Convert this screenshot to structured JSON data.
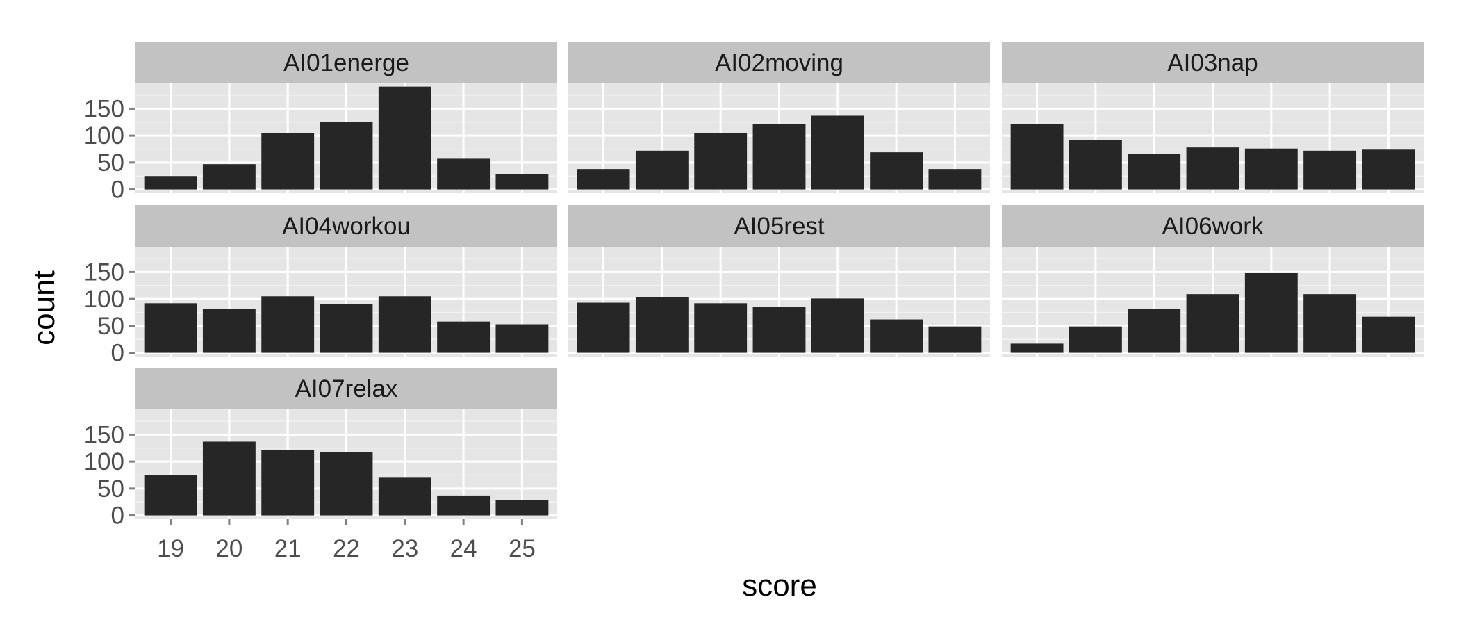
{
  "chart_data": {
    "type": "bar",
    "xlabel": "score",
    "ylabel": "count",
    "x": [
      19,
      20,
      21,
      22,
      23,
      24,
      25
    ],
    "x_tick_labels": [
      "19",
      "20",
      "21",
      "22",
      "23",
      "24",
      "25"
    ],
    "y_ticks": [
      0,
      50,
      100,
      150
    ],
    "y_tick_labels": [
      "0",
      "50",
      "100",
      "150"
    ],
    "ylim": [
      -7,
      197
    ],
    "grid": true,
    "facets": [
      {
        "name": "AI01energe",
        "values": [
          25,
          47,
          105,
          126,
          191,
          57,
          29
        ]
      },
      {
        "name": "AI02moving",
        "values": [
          38,
          72,
          105,
          121,
          137,
          69,
          38
        ]
      },
      {
        "name": "AI03nap",
        "values": [
          122,
          92,
          66,
          78,
          76,
          72,
          74
        ]
      },
      {
        "name": "AI04workou",
        "values": [
          92,
          81,
          105,
          91,
          105,
          58,
          53
        ]
      },
      {
        "name": "AI05rest",
        "values": [
          93,
          103,
          92,
          85,
          101,
          62,
          49
        ]
      },
      {
        "name": "AI06work",
        "values": [
          17,
          49,
          82,
          109,
          148,
          109,
          67
        ]
      },
      {
        "name": "AI07relax",
        "values": [
          75,
          137,
          121,
          118,
          70,
          37,
          28
        ]
      }
    ]
  }
}
